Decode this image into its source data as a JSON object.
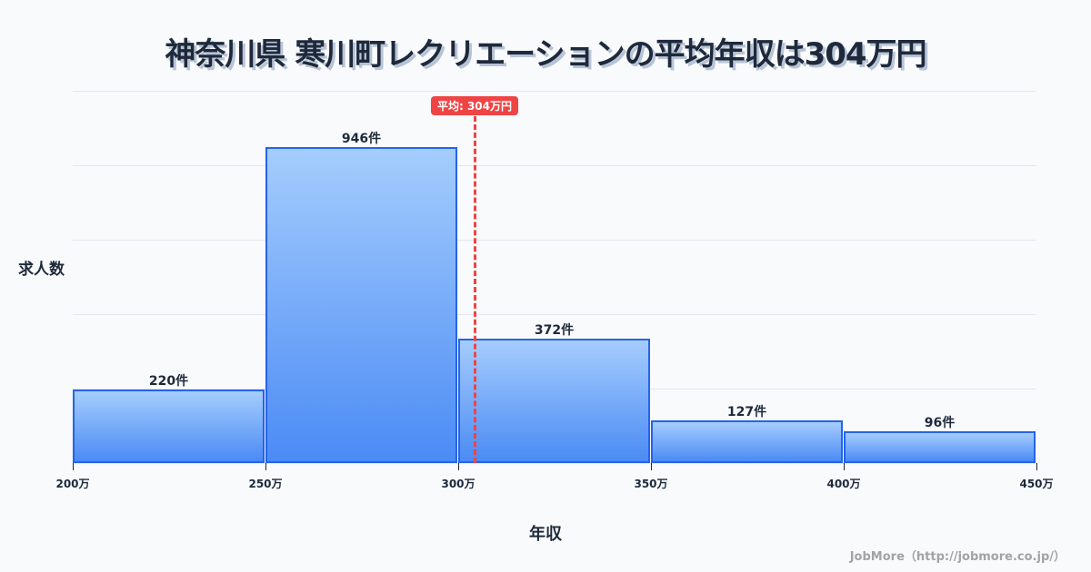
{
  "title": "神奈川県 寒川町レクリエーションの平均年収は304万円",
  "chart_data": {
    "type": "bar",
    "title": "神奈川県 寒川町レクリエーションの平均年収は304万円",
    "xlabel": "年収",
    "ylabel": "求人数",
    "x_ticks": [
      "200万",
      "250万",
      "300万",
      "350万",
      "400万",
      "450万"
    ],
    "categories": [
      "200万-250万",
      "250万-300万",
      "300万-350万",
      "350万-400万",
      "400万-450万"
    ],
    "values": [
      220,
      946,
      372,
      127,
      96
    ],
    "value_labels": [
      "220件",
      "946件",
      "372件",
      "127件",
      "96件"
    ],
    "ylim": [
      0,
      1115
    ],
    "grid": true,
    "annotations": [
      {
        "type": "vline",
        "x": 304,
        "label": "平均: 304万円",
        "color": "#ef4444"
      }
    ],
    "bar_color_top": "#a5cdfd",
    "bar_color_bottom": "#4b8bf5",
    "bar_border": "#2563eb"
  },
  "average_badge": "平均: 304万円",
  "credit": "JobMore（http://jobmore.co.jp/）"
}
